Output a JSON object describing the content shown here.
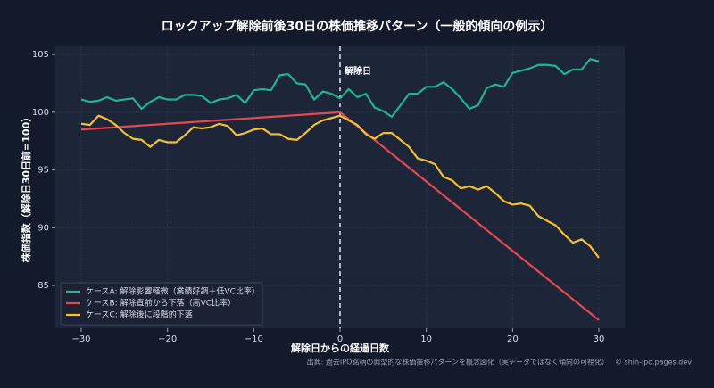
{
  "chart_data": {
    "type": "line",
    "title": "ロックアップ解除前後30日の株価推移パターン（一般的傾向の例示）",
    "xlabel": "解除日からの経過日数",
    "ylabel": "株価指数（解除日30日前=100）",
    "x": [
      -30,
      -29,
      -28,
      -27,
      -26,
      -25,
      -24,
      -23,
      -22,
      -21,
      -20,
      -19,
      -18,
      -17,
      -16,
      -15,
      -14,
      -13,
      -12,
      -11,
      -10,
      -9,
      -8,
      -7,
      -6,
      -5,
      -4,
      -3,
      -2,
      -1,
      0,
      1,
      2,
      3,
      4,
      5,
      6,
      7,
      8,
      9,
      10,
      11,
      12,
      13,
      14,
      15,
      16,
      17,
      18,
      19,
      20,
      21,
      22,
      23,
      24,
      25,
      26,
      27,
      28,
      29,
      30
    ],
    "series": [
      {
        "name": "ケースA: 解除影響軽微（業績好調＋低VC比率）",
        "color": "#1fb58f",
        "values": [
          101.1,
          100.9,
          101.0,
          101.3,
          101.0,
          101.1,
          101.2,
          100.3,
          100.9,
          101.3,
          101.1,
          101.1,
          101.5,
          101.5,
          101.4,
          100.8,
          101.1,
          101.2,
          101.5,
          100.8,
          101.9,
          102.0,
          101.9,
          103.2,
          103.3,
          102.5,
          102.4,
          101.1,
          101.8,
          101.6,
          101.2,
          102.0,
          101.3,
          101.6,
          100.4,
          100.1,
          99.6,
          100.6,
          101.6,
          101.6,
          102.2,
          102.2,
          102.6,
          102.0,
          101.2,
          100.3,
          100.6,
          102.1,
          102.4,
          102.2,
          103.4,
          103.6,
          103.8,
          104.1,
          104.1,
          104.0,
          103.3,
          103.7,
          103.7,
          104.6,
          104.4
        ]
      },
      {
        "name": "ケースB: 解除直前から下落（高VC比率）",
        "color": "#e5484d",
        "values": [
          98.5,
          98.55,
          98.6,
          98.65,
          98.7,
          98.75,
          98.8,
          98.85,
          98.9,
          98.95,
          99.0,
          99.05,
          99.1,
          99.15,
          99.2,
          99.25,
          99.3,
          99.35,
          99.4,
          99.45,
          99.5,
          99.55,
          99.6,
          99.65,
          99.7,
          99.75,
          99.8,
          99.85,
          99.9,
          99.95,
          100.0,
          99.4,
          98.8,
          98.2,
          97.6,
          97.0,
          96.4,
          95.8,
          95.2,
          94.6,
          94.0,
          93.4,
          92.8,
          92.2,
          91.6,
          91.0,
          90.4,
          89.8,
          89.2,
          88.6,
          88.0,
          87.4,
          86.8,
          86.2,
          85.6,
          85.0,
          84.4,
          83.8,
          83.2,
          82.6,
          82.0
        ]
      },
      {
        "name": "ケースC: 解除後に段階的下落",
        "color": "#f5c02e",
        "values": [
          99.0,
          98.9,
          99.7,
          99.4,
          98.9,
          98.2,
          97.7,
          97.6,
          97.0,
          97.6,
          97.4,
          97.4,
          98.0,
          98.7,
          98.6,
          98.7,
          99.0,
          98.8,
          98.0,
          98.2,
          98.5,
          98.6,
          98.1,
          98.1,
          97.7,
          97.6,
          98.2,
          98.9,
          99.3,
          99.5,
          99.7,
          99.3,
          98.9,
          98.1,
          97.7,
          98.2,
          98.2,
          97.6,
          97.0,
          96.0,
          95.8,
          95.5,
          94.4,
          94.1,
          93.4,
          93.6,
          93.3,
          93.6,
          93.0,
          92.3,
          92.0,
          92.1,
          91.9,
          91.0,
          90.6,
          90.2,
          89.4,
          88.7,
          89.0,
          88.4,
          87.4
        ]
      }
    ],
    "xlim": [
      -33,
      33
    ],
    "ylim": [
      81.3,
      105.7
    ],
    "xticks": [
      {
        "value": -30,
        "label": "−30"
      },
      {
        "value": -20,
        "label": "−20"
      },
      {
        "value": -10,
        "label": "−10"
      },
      0,
      10,
      20,
      30
    ],
    "yticks": [
      85,
      90,
      95,
      100,
      105
    ],
    "grid": true,
    "legend": "lower left",
    "annotations": [
      {
        "text": "解除日",
        "x": 0
      }
    ],
    "source": "出典: 過去IPO銘柄の典型的な株価推移パターンを概念図化（実データではなく傾向の可視化）",
    "credit": "© shin-ipo.pages.dev"
  }
}
